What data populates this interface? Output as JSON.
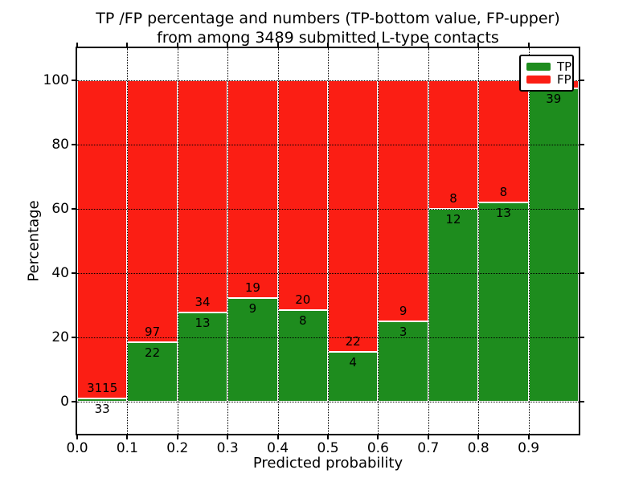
{
  "title": {
    "line1": "TP /FP percentage and numbers (TP-bottom value, FP-upper)",
    "line2": "from among 3489 submitted L-type contacts"
  },
  "axes": {
    "xlabel": "Predicted probability",
    "ylabel": "Percentage"
  },
  "legend": {
    "position": "upper right",
    "items": [
      {
        "label": "TP",
        "color": "#1e8c1e"
      },
      {
        "label": "FP",
        "color": "#fb1e14"
      }
    ]
  },
  "chart_data": {
    "type": "bar",
    "stacked": true,
    "title": "TP /FP percentage and numbers (TP-bottom value, FP-upper)\nfrom among 3489 submitted L-type contacts",
    "xlabel": "Predicted probability",
    "ylabel": "Percentage",
    "xlim": [
      0.0,
      1.0
    ],
    "ylim": [
      -10,
      110
    ],
    "x_tick_labels": [
      "0.0",
      "0.1",
      "0.2",
      "0.3",
      "0.4",
      "0.5",
      "0.6",
      "0.7",
      "0.8",
      "0.9"
    ],
    "y_tick_values": [
      0,
      20,
      40,
      60,
      80,
      100
    ],
    "y_tick_labels": [
      "0",
      "20",
      "40",
      "60",
      "80",
      "100"
    ],
    "grid": "dotted",
    "bar_edge_color": "#ffffff",
    "legend_position": "upper right",
    "total_contacts": 3489,
    "series": [
      {
        "name": "TP",
        "color": "#1e8c1e"
      },
      {
        "name": "FP",
        "color": "#fb1e14"
      }
    ],
    "bins": [
      {
        "x_start": 0.0,
        "x_end": 0.1,
        "tp_count": 33,
        "fp_count": 3115,
        "tp_pct": 1.05
      },
      {
        "x_start": 0.1,
        "x_end": 0.2,
        "tp_count": 22,
        "fp_count": 97,
        "tp_pct": 18.49
      },
      {
        "x_start": 0.2,
        "x_end": 0.3,
        "tp_count": 13,
        "fp_count": 34,
        "tp_pct": 27.66
      },
      {
        "x_start": 0.3,
        "x_end": 0.4,
        "tp_count": 9,
        "fp_count": 19,
        "tp_pct": 32.14
      },
      {
        "x_start": 0.4,
        "x_end": 0.5,
        "tp_count": 8,
        "fp_count": 20,
        "tp_pct": 28.57
      },
      {
        "x_start": 0.5,
        "x_end": 0.6,
        "tp_count": 4,
        "fp_count": 22,
        "tp_pct": 15.38
      },
      {
        "x_start": 0.6,
        "x_end": 0.7,
        "tp_count": 3,
        "fp_count": 9,
        "tp_pct": 25.0
      },
      {
        "x_start": 0.7,
        "x_end": 0.8,
        "tp_count": 12,
        "fp_count": 8,
        "tp_pct": 60.0
      },
      {
        "x_start": 0.8,
        "x_end": 0.9,
        "tp_count": 13,
        "fp_count": 8,
        "tp_pct": 61.9
      },
      {
        "x_start": 0.9,
        "x_end": 1.0,
        "tp_count": 39,
        "fp_count": null,
        "tp_pct": 97.5
      }
    ]
  }
}
